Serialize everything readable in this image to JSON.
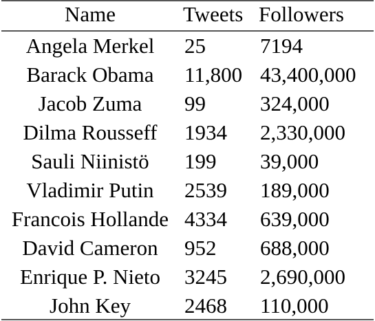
{
  "table": {
    "headers": {
      "name": "Name",
      "tweets": "Tweets",
      "followers": "Followers"
    },
    "rows": [
      {
        "name": "Angela Merkel",
        "tweets": "25",
        "followers": "7194"
      },
      {
        "name": "Barack Obama",
        "tweets": "11,800",
        "followers": "43,400,000"
      },
      {
        "name": "Jacob Zuma",
        "tweets": "99",
        "followers": "324,000"
      },
      {
        "name": "Dilma Rousseff",
        "tweets": "1934",
        "followers": "2,330,000"
      },
      {
        "name": "Sauli Niinistö",
        "tweets": "199",
        "followers": "39,000"
      },
      {
        "name": "Vladimir Putin",
        "tweets": "2539",
        "followers": "189,000"
      },
      {
        "name": "Francois Hollande",
        "tweets": "4334",
        "followers": "639,000"
      },
      {
        "name": "David Cameron",
        "tweets": "952",
        "followers": "688,000"
      },
      {
        "name": "Enrique P. Nieto",
        "tweets": "3245",
        "followers": "2,690,000"
      },
      {
        "name": "John Key",
        "tweets": "2468",
        "followers": "110,000"
      }
    ]
  }
}
